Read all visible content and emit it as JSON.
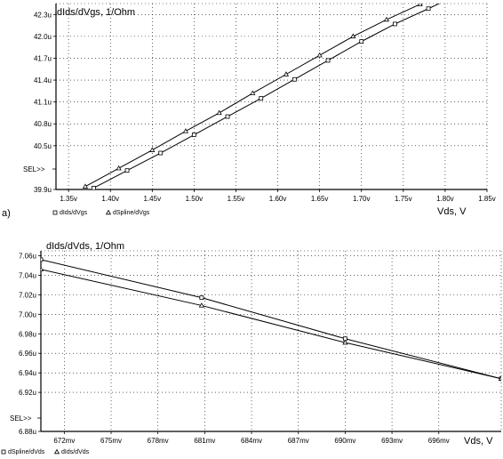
{
  "chart_data": [
    {
      "type": "line",
      "panel_label": "a)",
      "ylabel": "dIds/dVgs, 1/Ohm",
      "xlabel": "Vds, V",
      "sel_label": "SEL>>",
      "xlim": [
        1.335,
        1.85
      ],
      "ylim": [
        39.9,
        42.45
      ],
      "x_ticks": [
        1.35,
        1.4,
        1.45,
        1.5,
        1.55,
        1.6,
        1.65,
        1.7,
        1.75,
        1.8,
        1.85
      ],
      "x_tick_labels": [
        "1.35v",
        "1.40v",
        "1.45v",
        "1.50v",
        "1.55v",
        "1.60v",
        "1.65v",
        "1.70v",
        "1.75v",
        "1.80v",
        "1.85v"
      ],
      "y_ticks": [
        39.9,
        40.5,
        40.8,
        41.1,
        41.4,
        41.7,
        42.0,
        42.3
      ],
      "y_tick_labels": [
        "39.9u",
        "40.5u",
        "40.8u",
        "41.1u",
        "41.4u",
        "41.7u",
        "42.0u",
        "42.3u"
      ],
      "series": [
        {
          "name": "dIds/dVgs",
          "marker": "square",
          "x": [
            1.38,
            1.42,
            1.46,
            1.5,
            1.54,
            1.58,
            1.62,
            1.66,
            1.7,
            1.74,
            1.78,
            1.82
          ],
          "y": [
            39.92,
            40.16,
            40.4,
            40.65,
            40.9,
            41.15,
            41.41,
            41.67,
            41.93,
            42.17,
            42.38,
            42.6
          ]
        },
        {
          "name": "dSpline/dVgs",
          "marker": "triangle",
          "x": [
            1.37,
            1.41,
            1.45,
            1.49,
            1.53,
            1.57,
            1.61,
            1.65,
            1.69,
            1.73,
            1.77,
            1.81
          ],
          "y": [
            39.94,
            40.19,
            40.44,
            40.7,
            40.95,
            41.22,
            41.48,
            41.74,
            42.0,
            42.23,
            42.44,
            42.62
          ]
        }
      ]
    },
    {
      "type": "line",
      "ylabel": "dIds/dVds, 1/Ohm",
      "xlabel": "Vds, V",
      "sel_label": "SEL>>",
      "xlim": [
        670.5,
        700
      ],
      "ylim": [
        6.88,
        7.065
      ],
      "x_ticks": [
        672,
        675,
        678,
        681,
        684,
        687,
        690,
        693,
        696
      ],
      "x_tick_labels": [
        "672mv",
        "675mv",
        "678mv",
        "681mv",
        "684mv",
        "687mv",
        "690mv",
        "693mv",
        "696mv"
      ],
      "y_ticks": [
        6.88,
        6.92,
        6.94,
        6.96,
        6.98,
        7.0,
        7.02,
        7.04,
        7.06
      ],
      "y_tick_labels": [
        "6.88u",
        "6.92u",
        "6.94u",
        "6.96u",
        "6.98u",
        "7.00u",
        "7.02u",
        "7.04u",
        "7.06u"
      ],
      "series": [
        {
          "name": "dSpline/dVds",
          "marker": "square",
          "x": [
            670.5,
            680.8,
            690,
            700
          ],
          "y": [
            7.056,
            7.017,
            6.975,
            6.934
          ]
        },
        {
          "name": "dIds/dVds",
          "marker": "triangle",
          "x": [
            670.5,
            680.8,
            690,
            700
          ],
          "y": [
            7.046,
            7.009,
            6.971,
            6.934
          ]
        }
      ]
    }
  ]
}
